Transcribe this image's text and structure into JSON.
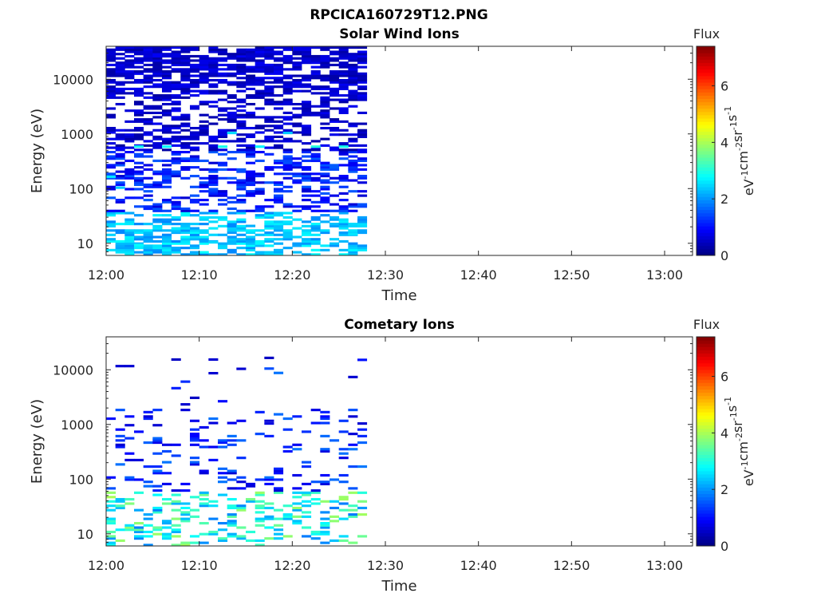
{
  "figure": {
    "title": "RPCICA160729T12.PNG"
  },
  "chart_data": [
    {
      "type": "heatmap",
      "title": "Solar Wind Ions",
      "xlabel": "Time",
      "ylabel": "Energy (eV)",
      "x_ticks": [
        "12:00",
        "12:10",
        "12:20",
        "12:30",
        "12:40",
        "12:50",
        "13:00"
      ],
      "xlim_minutes": [
        0,
        63
      ],
      "y_ticks": [
        "10",
        "100",
        "1000",
        "10000"
      ],
      "y_scale": "log",
      "ylim": [
        6,
        40000
      ],
      "colorbar": {
        "label": "Flux",
        "unit": "eV-1cm-2sr-1s-1",
        "range": [
          0,
          7.4
        ],
        "ticks": [
          "0",
          "2",
          "4",
          "6"
        ],
        "colormap": "jet"
      },
      "data_extent_minutes": [
        0,
        28
      ],
      "time_bin_minutes": 1,
      "energy_bins": 96,
      "seed": 3,
      "cells": [
        {
          "t": 0,
          "e": 2.2,
          "v": 2.6
        },
        {
          "t": 1,
          "e": 2.0,
          "v": 2.4
        },
        {
          "t": 3,
          "e": 0.95,
          "v": 2.8
        },
        {
          "t": 7,
          "e": 1.2,
          "v": 2.3
        },
        {
          "t": 11,
          "e": 1.0,
          "v": 2.5
        },
        {
          "t": 15,
          "e": 1.3,
          "v": 2.2
        },
        {
          "t": 19,
          "e": 1.1,
          "v": 2.4
        },
        {
          "t": 26,
          "e": 1.15,
          "v": 2.6
        },
        {
          "t": 3,
          "e": 2.75,
          "v": 2.9
        },
        {
          "t": 6,
          "e": 2.75,
          "v": 2.8
        },
        {
          "t": 12,
          "e": 2.75,
          "v": 2.9
        },
        {
          "t": 16,
          "e": 2.75,
          "v": 2.7
        },
        {
          "t": 22,
          "e": 2.75,
          "v": 3.0
        },
        {
          "t": 25,
          "e": 2.75,
          "v": 2.9
        },
        {
          "t": 13,
          "e": 3.0,
          "v": 2.5
        },
        {
          "t": 19,
          "e": 3.0,
          "v": 2.4
        }
      ]
    },
    {
      "type": "heatmap",
      "title": "Cometary Ions",
      "xlabel": "Time",
      "ylabel": "Energy (eV)",
      "x_ticks": [
        "12:00",
        "12:10",
        "12:20",
        "12:30",
        "12:40",
        "12:50",
        "13:00"
      ],
      "xlim_minutes": [
        0,
        63
      ],
      "y_ticks": [
        "10",
        "100",
        "1000",
        "10000"
      ],
      "y_scale": "log",
      "ylim": [
        6,
        40000
      ],
      "colorbar": {
        "label": "Flux",
        "unit": "eV-1cm-2sr-1s-1",
        "range": [
          0,
          7.4
        ],
        "ticks": [
          "0",
          "2",
          "4",
          "6"
        ],
        "colormap": "jet"
      },
      "data_extent_minutes": [
        0,
        28
      ],
      "time_bin_minutes": 1,
      "energy_bins": 96,
      "seed": 11,
      "cells": [
        {
          "t": 1,
          "e": 4.05,
          "v": 0.6
        },
        {
          "t": 2,
          "e": 4.05,
          "v": 0.6
        },
        {
          "t": 7,
          "e": 4.17,
          "v": 0.5
        },
        {
          "t": 8,
          "e": 3.35,
          "v": 0.6
        },
        {
          "t": 9,
          "e": 3.47,
          "v": 0.5
        },
        {
          "t": 11,
          "e": 4.17,
          "v": 0.6
        },
        {
          "t": 11,
          "e": 3.92,
          "v": 0.6
        },
        {
          "t": 14,
          "e": 4.0,
          "v": 0.6
        },
        {
          "t": 17,
          "e": 4.2,
          "v": 0.5
        },
        {
          "t": 26,
          "e": 3.85,
          "v": 0.6
        },
        {
          "t": 17,
          "e": 3.0,
          "v": 0.7
        },
        {
          "t": 27,
          "e": 3.0,
          "v": 0.6
        }
      ]
    }
  ]
}
